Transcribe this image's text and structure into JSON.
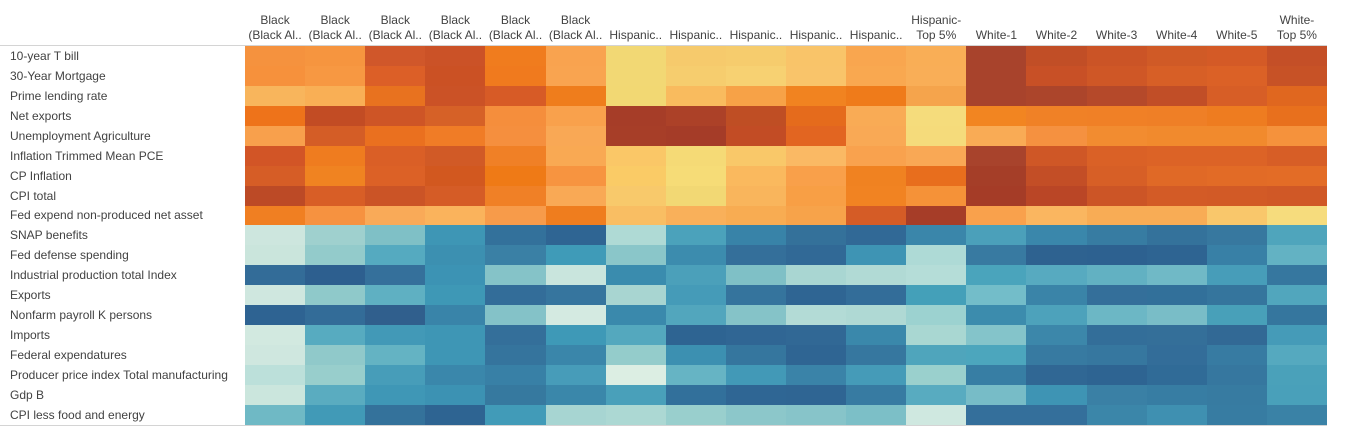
{
  "figure": {
    "background_color": "#FFFFFF",
    "axis_line_color": "#D4D4D4",
    "label_text_color": "#424242"
  },
  "chart_data": {
    "type": "heatmap",
    "title": "",
    "xlabel": "",
    "ylabel": "",
    "legend": "none",
    "grid": "off",
    "palette": {
      "style": "diverging orange-blue",
      "high": "#A8432C",
      "mid_warm": "#F2D874",
      "mid_cool": "#DCEEE3",
      "low": "#2D6190"
    },
    "columns": [
      {
        "line1": "Black",
        "line2": "(Black Al.."
      },
      {
        "line1": "Black",
        "line2": "(Black Al.."
      },
      {
        "line1": "Black",
        "line2": "(Black Al.."
      },
      {
        "line1": "Black",
        "line2": "(Black Al.."
      },
      {
        "line1": "Black",
        "line2": "(Black Al.."
      },
      {
        "line1": "Black",
        "line2": "(Black Al.."
      },
      {
        "line1": "",
        "line2": "Hispanic.."
      },
      {
        "line1": "",
        "line2": "Hispanic.."
      },
      {
        "line1": "",
        "line2": "Hispanic.."
      },
      {
        "line1": "",
        "line2": "Hispanic.."
      },
      {
        "line1": "",
        "line2": "Hispanic.."
      },
      {
        "line1": "Hispanic-",
        "line2": "Top 5%"
      },
      {
        "line1": "",
        "line2": "White-1"
      },
      {
        "line1": "",
        "line2": "White-2"
      },
      {
        "line1": "",
        "line2": "White-3"
      },
      {
        "line1": "",
        "line2": "White-4"
      },
      {
        "line1": "",
        "line2": "White-5"
      },
      {
        "line1": "White-",
        "line2": "Top 5%"
      }
    ],
    "rows": [
      "10-year T bill",
      "30-Year Mortgage",
      "Prime lending rate",
      "Net exports",
      "Unemployment Agriculture",
      "Inflation Trimmed Mean PCE",
      "CP Inflation",
      "CPI total",
      "Fed expend non-produced net asset",
      "SNAP benefits",
      "Fed defense spending",
      "Industrial production total Index",
      "Exports",
      "Nonfarm payroll K persons",
      "Imports",
      "Federal expendatures",
      "Producer price index Total manufacturing",
      "Gdp B",
      "CPI less food and energy"
    ],
    "cell_colors": [
      [
        "#F5923E",
        "#F6953F",
        "#D0572A",
        "#CB5227",
        "#F07C1E",
        "#F9A34F",
        "#F2D874",
        "#F6CA6C",
        "#F6CC6D",
        "#F9C469",
        "#F9A64F",
        "#F9AE56",
        "#A8432C",
        "#C14E26",
        "#CB5426",
        "#D05A26",
        "#D45A26",
        "#C44F27"
      ],
      [
        "#F6913C",
        "#F79842",
        "#DC5F27",
        "#CB5124",
        "#F07A1E",
        "#F9A450",
        "#F2D874",
        "#F6CD6E",
        "#F7D172",
        "#F9C46A",
        "#F9A850",
        "#F9AE57",
        "#A8432C",
        "#C85026",
        "#CF5726",
        "#D75F26",
        "#DB6126",
        "#C75226"
      ],
      [
        "#F8B55C",
        "#F9AF55",
        "#E8721F",
        "#CB5226",
        "#D75B26",
        "#EF7D1C",
        "#F2D873",
        "#F9BB5E",
        "#F7A247",
        "#F18320",
        "#EF7B1A",
        "#F5A44C",
        "#A8432C",
        "#AC452B",
        "#B5492A",
        "#C14E27",
        "#D75E26",
        "#E0671F"
      ],
      [
        "#EE731A",
        "#C24C24",
        "#CE5526",
        "#D66127",
        "#F58E3C",
        "#F9A14C",
        "#A63D28",
        "#AC4128",
        "#BF4E24",
        "#E56B1C",
        "#F9AB55",
        "#F5DC7C",
        "#F28521",
        "#F08126",
        "#F08026",
        "#EF7F26",
        "#EE7C20",
        "#E8701D"
      ],
      [
        "#F8A04C",
        "#D45D26",
        "#EA701F",
        "#F07C26",
        "#F58F3E",
        "#F9A855",
        "#A73E28",
        "#A53C28",
        "#C24C25",
        "#E26521",
        "#F9A955",
        "#F5DB7B",
        "#F9AB55",
        "#F59140",
        "#F28C30",
        "#F18A2D",
        "#F18A2D",
        "#F5923C"
      ],
      [
        "#D25526",
        "#EF7C1F",
        "#DA5F26",
        "#D15A26",
        "#F08026",
        "#F9A953",
        "#FAC767",
        "#F5DA76",
        "#F9C869",
        "#FAB964",
        "#F9A24E",
        "#F9A855",
        "#A8432C",
        "#CF5726",
        "#DA6126",
        "#DC6326",
        "#DC6326",
        "#D75E26"
      ],
      [
        "#D65D26",
        "#F08321",
        "#DC6126",
        "#D2581F",
        "#EF7A16",
        "#F79440",
        "#FACB66",
        "#F6DC77",
        "#FAB95E",
        "#F9A04A",
        "#F08221",
        "#E86E1D",
        "#A53E28",
        "#C34E26",
        "#D75F26",
        "#E06926",
        "#E26B26",
        "#E36C26"
      ],
      [
        "#BC4A26",
        "#D85E26",
        "#CB5426",
        "#D55C26",
        "#F08026",
        "#F9A955",
        "#F8C96B",
        "#F2D874",
        "#F9B55C",
        "#F89F45",
        "#F18322",
        "#F59238",
        "#A53C27",
        "#BA4626",
        "#CC5526",
        "#D35B26",
        "#D25A26",
        "#D05826"
      ],
      [
        "#F07F22",
        "#F69240",
        "#F9AA58",
        "#FAB35C",
        "#F79B4A",
        "#EF7D1E",
        "#F9BE63",
        "#F9B05A",
        "#F8AC52",
        "#F7A34A",
        "#D55C26",
        "#A63D28",
        "#F9A14C",
        "#FAB660",
        "#F8AC55",
        "#F8AC55",
        "#F9C76B",
        "#F6DC7D"
      ],
      [
        "#CDE6DE",
        "#9FD0CE",
        "#7FC0C6",
        "#3E96B5",
        "#33719B",
        "#2F6593",
        "#AFDAD5",
        "#4BA2BB",
        "#3883A8",
        "#34719A",
        "#316996",
        "#3A86AA",
        "#4BA0BA",
        "#3A87AB",
        "#377CA2",
        "#34729B",
        "#37789F",
        "#4FA5BC"
      ],
      [
        "#CAE5DC",
        "#93CBCB",
        "#55AAC0",
        "#3C90B1",
        "#3A80A5",
        "#3F9BB8",
        "#8AC6C9",
        "#3C8CAE",
        "#346F9A",
        "#316996",
        "#3E94B4",
        "#AEDAD6",
        "#387AA1",
        "#2E6290",
        "#2D6190",
        "#2E6492",
        "#3880A6",
        "#63B2C3"
      ],
      [
        "#336C98",
        "#2D5F8F",
        "#35709B",
        "#3C93B4",
        "#85C3C8",
        "#C9E5DD",
        "#3A8CAE",
        "#4BA0BA",
        "#7FC0C6",
        "#A9D6D2",
        "#B1DAD5",
        "#B5DDD8",
        "#4AA4BC",
        "#57AAC0",
        "#62B1C2",
        "#70B9C6",
        "#479DB9",
        "#36779F"
      ],
      [
        "#CFE7DF",
        "#8FC9CA",
        "#5FB0C2",
        "#3E98B6",
        "#336D99",
        "#36759E",
        "#A8D5D1",
        "#459BB8",
        "#35749D",
        "#2F6593",
        "#336D99",
        "#44A0B9",
        "#73BDC9",
        "#3A84A8",
        "#346F9A",
        "#32709A",
        "#35759D",
        "#51A6BD"
      ],
      [
        "#2E6392",
        "#336C98",
        "#305F8D",
        "#3984A9",
        "#84C2C8",
        "#D4EAE1",
        "#3A89AC",
        "#52A6BD",
        "#85C3C8",
        "#B3DBD6",
        "#AFD9D4",
        "#9CD2D0",
        "#3C8CAD",
        "#4DA2BB",
        "#6CB7C5",
        "#79BDC7",
        "#48A0B9",
        "#35769E"
      ],
      [
        "#D2E9E0",
        "#57ABC0",
        "#4299B7",
        "#3E96B5",
        "#346F9A",
        "#3E99B7",
        "#54A8BE",
        "#2E6492",
        "#306694",
        "#316895",
        "#3A88AB",
        "#A9D7D2",
        "#84C4CA",
        "#3C87AA",
        "#336E99",
        "#346F99",
        "#326995",
        "#459BB8"
      ],
      [
        "#CFE7DF",
        "#90C9CA",
        "#64B3C3",
        "#3E96B5",
        "#35749D",
        "#3A86AA",
        "#94CCCB",
        "#3C90B1",
        "#35769E",
        "#2F6593",
        "#36779F",
        "#4FA5BC",
        "#4CA6BD",
        "#377AA1",
        "#36779F",
        "#336D99",
        "#377BA2",
        "#55A9BF"
      ],
      [
        "#BCE0DA",
        "#98CECC",
        "#479DB9",
        "#3A87AB",
        "#3880A6",
        "#479CB9",
        "#DCEEE3",
        "#66B4C4",
        "#4299B7",
        "#3A83A8",
        "#459BB8",
        "#9AD0CD",
        "#377EA4",
        "#306794",
        "#2E6492",
        "#306B97",
        "#36779F",
        "#4AA1BA"
      ],
      [
        "#CBE6DD",
        "#5AACC0",
        "#3F97B6",
        "#3C92B3",
        "#36799F",
        "#3A87AA",
        "#49A0BA",
        "#32709B",
        "#2F6694",
        "#2F6593",
        "#377BA2",
        "#58ABC0",
        "#77BCC7",
        "#3E94B4",
        "#3A80A5",
        "#377DA3",
        "#377BA1",
        "#49A0BA"
      ],
      [
        "#6FB9C5",
        "#419AB7",
        "#34729B",
        "#2E6492",
        "#419BB8",
        "#A7D5D2",
        "#ACD8D3",
        "#99CFCD",
        "#8CC7CA",
        "#87C4C9",
        "#7CBFC7",
        "#CFE8E0",
        "#346F9B",
        "#346F9B",
        "#3B86A9",
        "#3F90B1",
        "#377CA2",
        "#3A82A6"
      ]
    ]
  }
}
